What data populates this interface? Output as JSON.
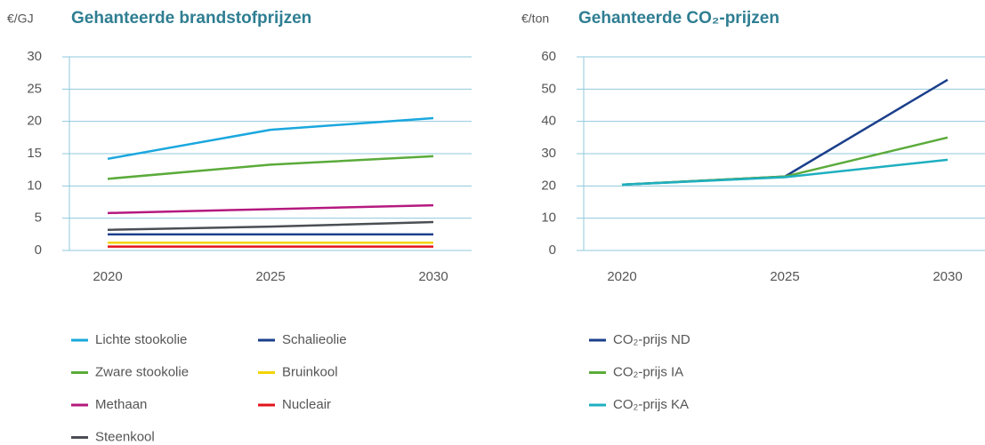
{
  "chart_data": [
    {
      "type": "line",
      "title": "Gehanteerde brandstofprijzen",
      "y_label": "€/GJ",
      "categories": [
        "2020",
        "2025",
        "2030"
      ],
      "ylim": [
        0,
        30
      ],
      "yticks": [
        0,
        5,
        10,
        15,
        20,
        25,
        30
      ],
      "grid": true,
      "series": [
        {
          "name": "Lichte stookolie",
          "color": "#1aa7de",
          "values": [
            14.2,
            18.7,
            20.5
          ]
        },
        {
          "name": "Schalieolie",
          "color": "#1b3f8b",
          "values": [
            2.5,
            2.5,
            2.5
          ]
        },
        {
          "name": "Zware stookolie",
          "color": "#5aab3a",
          "values": [
            11.1,
            13.3,
            14.6
          ]
        },
        {
          "name": "Bruinkool",
          "color": "#f2d400",
          "values": [
            1.2,
            1.2,
            1.2
          ]
        },
        {
          "name": "Methaan",
          "color": "#b5197f",
          "values": [
            5.8,
            6.4,
            7.0
          ]
        },
        {
          "name": "Nucleair",
          "color": "#e3141b",
          "values": [
            0.6,
            0.6,
            0.6
          ]
        },
        {
          "name": "Steenkool",
          "color": "#4a4f54",
          "values": [
            3.2,
            3.7,
            4.4
          ]
        }
      ]
    },
    {
      "type": "line",
      "title": "Gehanteerde CO₂-prijzen",
      "y_label": "€/ton",
      "categories": [
        "2020",
        "2025",
        "2030"
      ],
      "ylim": [
        0,
        60
      ],
      "yticks": [
        0,
        10,
        20,
        30,
        40,
        50,
        60
      ],
      "grid": true,
      "series": [
        {
          "name": "CO₂-prijs ND",
          "color": "#1b3f8b",
          "values": [
            20.4,
            22.9,
            52.9
          ]
        },
        {
          "name": "CO₂-prijs IA",
          "color": "#5aab3a",
          "values": [
            20.4,
            22.9,
            35.0
          ]
        },
        {
          "name": "CO₂-prijs KA",
          "color": "#1eafc0",
          "values": [
            20.4,
            22.7,
            28.1
          ]
        }
      ]
    }
  ]
}
